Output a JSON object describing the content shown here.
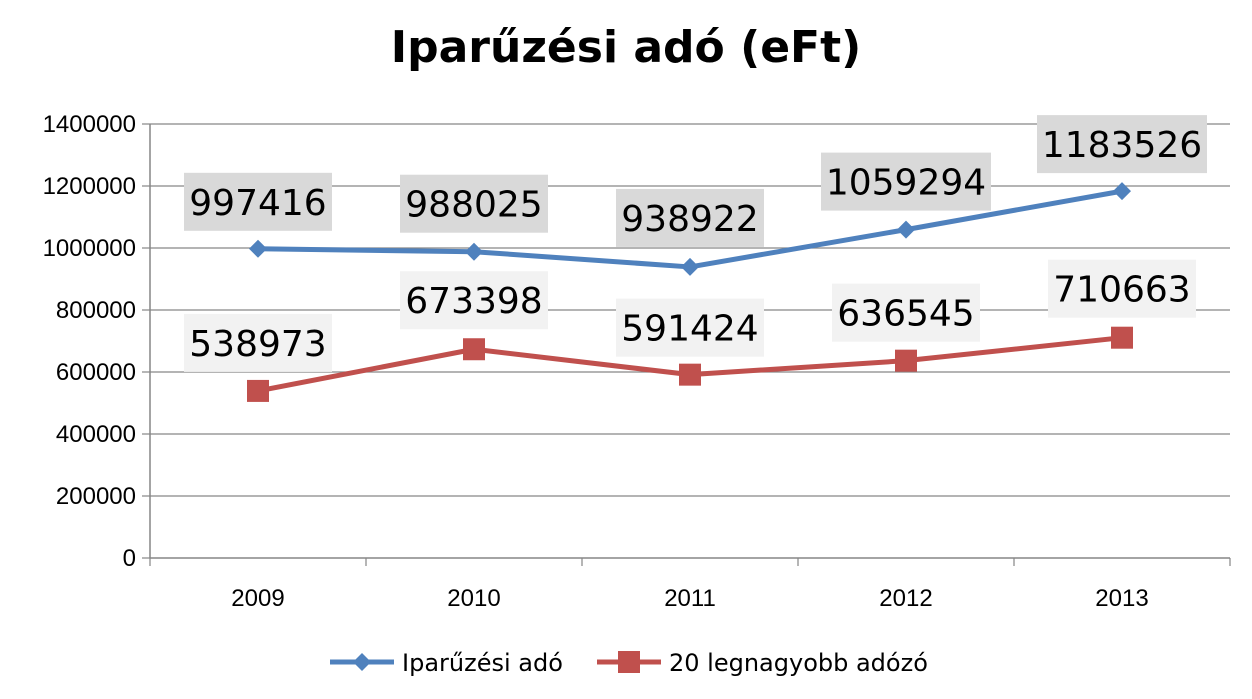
{
  "chart_data": {
    "type": "line",
    "title": "Iparűzési adó (eFt)",
    "categories": [
      "2009",
      "2010",
      "2011",
      "2012",
      "2013"
    ],
    "ylim": [
      0,
      1400000
    ],
    "yticks": [
      0,
      200000,
      400000,
      600000,
      800000,
      1000000,
      1200000,
      1400000
    ],
    "grid": true,
    "legend_position": "bottom",
    "series": [
      {
        "name": "Iparűzési adó",
        "values": [
          997416,
          988025,
          938922,
          1059294,
          1183526
        ],
        "color": "#4f81bd",
        "marker": "diamond",
        "label_bg": "#d9d9d9"
      },
      {
        "name": "20 legnagyobb adózó",
        "values": [
          538973,
          673398,
          591424,
          636545,
          710663
        ],
        "color": "#c0504d",
        "marker": "square",
        "label_bg": "#f2f2f2"
      }
    ]
  }
}
